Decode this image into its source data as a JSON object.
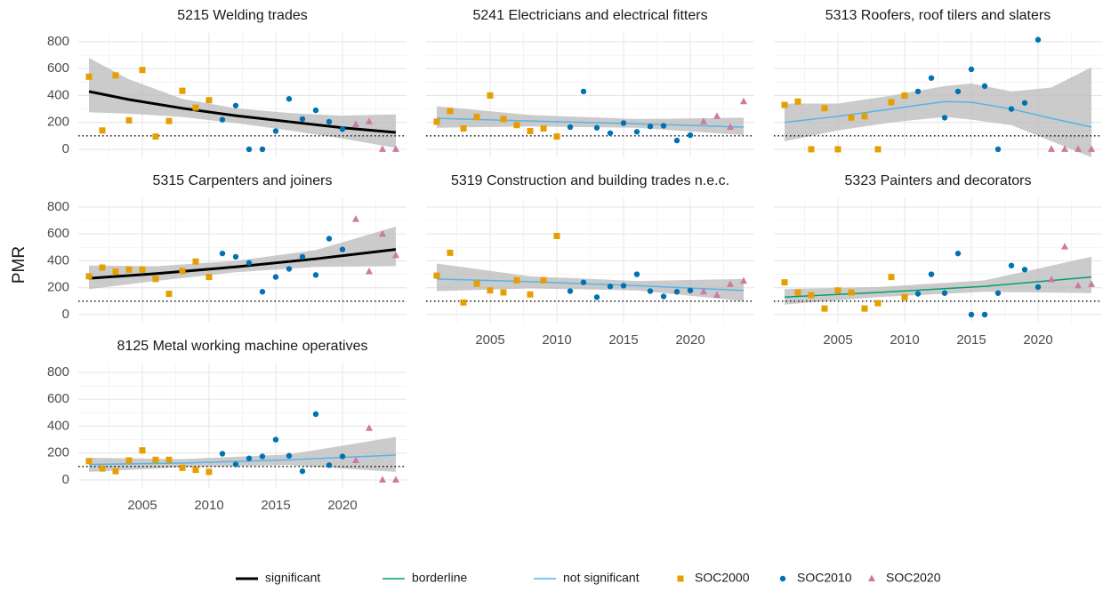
{
  "ylabel": "PMR",
  "legend": [
    {
      "name": "significant",
      "color": "#000000",
      "mark": "line",
      "width": 3
    },
    {
      "name": "borderline",
      "color": "#009E73",
      "mark": "line",
      "width": 1.5
    },
    {
      "name": "not significant",
      "color": "#56B4E9",
      "mark": "line",
      "width": 1.5
    },
    {
      "name": "SOC2000",
      "color": "#E69F00",
      "mark": "square"
    },
    {
      "name": "SOC2010",
      "color": "#0072B2",
      "mark": "circle"
    },
    {
      "name": "SOC2020",
      "color": "#CC79A7",
      "mark": "triangle"
    }
  ],
  "chart_data": [
    {
      "type": "scatter",
      "title": "5215 Welding trades",
      "xlim": [
        2000.2,
        2024.8
      ],
      "ylim": [
        -60,
        866
      ],
      "xticks": [
        2005,
        2010,
        2015,
        2020
      ],
      "yticks": [
        0,
        200,
        400,
        600,
        800
      ],
      "grid": true,
      "reference_line": 100,
      "series": [
        {
          "color": "#E69F00",
          "marker": "square",
          "x": [
            2001,
            2002,
            2003,
            2004,
            2005,
            2006,
            2007,
            2008,
            2009,
            2010
          ],
          "values": [
            540,
            140,
            550,
            215,
            590,
            95,
            210,
            435,
            310,
            365
          ]
        },
        {
          "color": "#0072B2",
          "marker": "circle",
          "x": [
            2011,
            2012,
            2013,
            2014,
            2015,
            2016,
            2017,
            2018,
            2019,
            2020
          ],
          "values": [
            220,
            325,
            0,
            0,
            135,
            375,
            225,
            290,
            205,
            150
          ]
        },
        {
          "color": "#CC79A7",
          "marker": "triangle",
          "x": [
            2021,
            2022,
            2023,
            2024
          ],
          "values": [
            185,
            205,
            0,
            0
          ]
        }
      ],
      "trend": {
        "color": "#000000",
        "width": 3,
        "x": [
          2001,
          2004,
          2008,
          2012,
          2016,
          2020,
          2024
        ],
        "values": [
          430,
          370,
          305,
          250,
          205,
          160,
          125
        ],
        "lower": [
          275,
          265,
          240,
          195,
          140,
          80,
          10
        ],
        "upper": [
          680,
          520,
          375,
          305,
          270,
          250,
          260
        ]
      }
    },
    {
      "type": "scatter",
      "title": "5241 Electricians and electrical fitters",
      "xlim": [
        2000.2,
        2024.8
      ],
      "ylim": [
        -60,
        866
      ],
      "xticks": [
        2005,
        2010,
        2015,
        2020
      ],
      "yticks": [
        0,
        200,
        400,
        600,
        800
      ],
      "grid": true,
      "reference_line": 100,
      "series": [
        {
          "color": "#E69F00",
          "marker": "square",
          "x": [
            2001,
            2002,
            2003,
            2004,
            2005,
            2006,
            2007,
            2008,
            2009,
            2010
          ],
          "values": [
            205,
            285,
            155,
            240,
            400,
            225,
            180,
            135,
            155,
            95
          ]
        },
        {
          "color": "#0072B2",
          "marker": "circle",
          "x": [
            2011,
            2012,
            2013,
            2014,
            2015,
            2016,
            2017,
            2018,
            2019,
            2020
          ],
          "values": [
            165,
            430,
            160,
            120,
            195,
            130,
            170,
            175,
            65,
            105
          ]
        },
        {
          "color": "#CC79A7",
          "marker": "triangle",
          "x": [
            2021,
            2022,
            2023,
            2024
          ],
          "values": [
            205,
            245,
            165,
            355
          ]
        }
      ],
      "trend": {
        "color": "#56B4E9",
        "width": 1.5,
        "x": [
          2001,
          2008,
          2016,
          2024
        ],
        "values": [
          230,
          210,
          190,
          165
        ],
        "lower": [
          160,
          170,
          160,
          105
        ],
        "upper": [
          320,
          255,
          225,
          235
        ]
      }
    },
    {
      "type": "scatter",
      "title": "5313 Roofers, roof tilers and slaters",
      "xlim": [
        2000.2,
        2024.8
      ],
      "ylim": [
        -60,
        866
      ],
      "xticks": [
        2005,
        2010,
        2015,
        2020
      ],
      "yticks": [
        0,
        200,
        400,
        600,
        800
      ],
      "grid": true,
      "reference_line": 100,
      "series": [
        {
          "color": "#E69F00",
          "marker": "square",
          "x": [
            2001,
            2002,
            2003,
            2004,
            2005,
            2006,
            2007,
            2008,
            2009,
            2010
          ],
          "values": [
            330,
            355,
            0,
            305,
            0,
            235,
            245,
            0,
            350,
            400
          ]
        },
        {
          "color": "#0072B2",
          "marker": "circle",
          "x": [
            2011,
            2012,
            2013,
            2014,
            2015,
            2016,
            2017,
            2018,
            2019,
            2020
          ],
          "values": [
            430,
            530,
            235,
            430,
            595,
            470,
            0,
            300,
            345,
            815
          ]
        },
        {
          "color": "#CC79A7",
          "marker": "triangle",
          "x": [
            2021,
            2022,
            2023,
            2024
          ],
          "values": [
            0,
            0,
            0,
            0
          ]
        }
      ],
      "trend": {
        "color": "#56B4E9",
        "width": 1.5,
        "x": [
          2001,
          2005,
          2009,
          2013,
          2015,
          2018,
          2021,
          2024
        ],
        "values": [
          200,
          245,
          300,
          355,
          350,
          300,
          230,
          165
        ],
        "lower": [
          60,
          140,
          200,
          240,
          220,
          180,
          60,
          -60
        ],
        "upper": [
          340,
          340,
          400,
          470,
          490,
          430,
          460,
          610
        ]
      }
    },
    {
      "type": "scatter",
      "title": "5315 Carpenters and joiners",
      "xlim": [
        2000.2,
        2024.8
      ],
      "ylim": [
        -60,
        866
      ],
      "xticks": [
        2005,
        2010,
        2015,
        2020
      ],
      "yticks": [
        0,
        200,
        400,
        600,
        800
      ],
      "grid": true,
      "reference_line": 100,
      "series": [
        {
          "color": "#E69F00",
          "marker": "square",
          "x": [
            2001,
            2002,
            2003,
            2004,
            2005,
            2006,
            2007,
            2008,
            2009,
            2010
          ],
          "values": [
            285,
            350,
            320,
            335,
            335,
            265,
            155,
            325,
            395,
            280
          ]
        },
        {
          "color": "#0072B2",
          "marker": "circle",
          "x": [
            2011,
            2012,
            2013,
            2014,
            2015,
            2016,
            2017,
            2018,
            2019,
            2020
          ],
          "values": [
            455,
            430,
            385,
            170,
            280,
            340,
            430,
            295,
            565,
            485
          ]
        },
        {
          "color": "#CC79A7",
          "marker": "triangle",
          "x": [
            2021,
            2022,
            2023,
            2024
          ],
          "values": [
            710,
            320,
            600,
            440
          ]
        }
      ],
      "trend": {
        "color": "#000000",
        "width": 3,
        "x": [
          2001,
          2006,
          2012,
          2018,
          2024
        ],
        "values": [
          270,
          305,
          355,
          415,
          485
        ],
        "lower": [
          190,
          250,
          315,
          355,
          360
        ],
        "upper": [
          365,
          360,
          400,
          480,
          655
        ]
      }
    },
    {
      "type": "scatter",
      "title": "5319 Construction and building trades n.e.c.",
      "xlim": [
        2000.2,
        2024.8
      ],
      "ylim": [
        -60,
        866
      ],
      "xticks": [
        2005,
        2010,
        2015,
        2020
      ],
      "yticks": [
        0,
        200,
        400,
        600,
        800
      ],
      "grid": true,
      "reference_line": 100,
      "series": [
        {
          "color": "#E69F00",
          "marker": "square",
          "x": [
            2001,
            2002,
            2003,
            2004,
            2005,
            2006,
            2007,
            2008,
            2009,
            2010
          ],
          "values": [
            290,
            460,
            90,
            230,
            180,
            165,
            255,
            150,
            255,
            585
          ]
        },
        {
          "color": "#0072B2",
          "marker": "circle",
          "x": [
            2011,
            2012,
            2013,
            2014,
            2015,
            2016,
            2017,
            2018,
            2019,
            2020
          ],
          "values": [
            175,
            240,
            130,
            210,
            215,
            300,
            175,
            135,
            170,
            180
          ]
        },
        {
          "color": "#CC79A7",
          "marker": "triangle",
          "x": [
            2021,
            2022,
            2023,
            2024
          ],
          "values": [
            170,
            145,
            225,
            250
          ]
        }
      ],
      "trend": {
        "color": "#56B4E9",
        "width": 1.5,
        "x": [
          2001,
          2008,
          2016,
          2024
        ],
        "values": [
          265,
          245,
          215,
          180
        ],
        "lower": [
          175,
          195,
          180,
          100
        ],
        "upper": [
          380,
          285,
          250,
          265
        ]
      }
    },
    {
      "type": "scatter",
      "title": "5323 Painters and decorators",
      "xlim": [
        2000.2,
        2024.8
      ],
      "ylim": [
        -60,
        866
      ],
      "xticks": [
        2005,
        2010,
        2015,
        2020
      ],
      "yticks": [
        0,
        200,
        400,
        600,
        800
      ],
      "grid": true,
      "reference_line": 100,
      "series": [
        {
          "color": "#E69F00",
          "marker": "square",
          "x": [
            2001,
            2002,
            2003,
            2004,
            2005,
            2006,
            2007,
            2008,
            2009,
            2010
          ],
          "values": [
            240,
            165,
            145,
            45,
            180,
            165,
            45,
            85,
            280,
            130
          ]
        },
        {
          "color": "#0072B2",
          "marker": "circle",
          "x": [
            2011,
            2012,
            2013,
            2014,
            2015,
            2016,
            2017,
            2018,
            2019,
            2020
          ],
          "values": [
            155,
            300,
            160,
            455,
            0,
            0,
            160,
            365,
            335,
            205
          ]
        },
        {
          "color": "#CC79A7",
          "marker": "triangle",
          "x": [
            2021,
            2022,
            2023,
            2024
          ],
          "values": [
            260,
            505,
            215,
            225
          ]
        }
      ],
      "trend": {
        "color": "#009E73",
        "width": 1.5,
        "x": [
          2001,
          2008,
          2016,
          2024
        ],
        "values": [
          130,
          165,
          210,
          280
        ],
        "lower": [
          75,
          130,
          170,
          160
        ],
        "upper": [
          190,
          205,
          255,
          430
        ]
      }
    },
    {
      "type": "scatter",
      "title": "8125 Metal working machine operatives",
      "xlim": [
        2000.2,
        2024.8
      ],
      "ylim": [
        -60,
        866
      ],
      "xticks": [
        2005,
        2010,
        2015,
        2020
      ],
      "yticks": [
        0,
        200,
        400,
        600,
        800
      ],
      "grid": true,
      "reference_line": 100,
      "series": [
        {
          "color": "#E69F00",
          "marker": "square",
          "x": [
            2001,
            2002,
            2003,
            2004,
            2005,
            2006,
            2007,
            2008,
            2009,
            2010
          ],
          "values": [
            140,
            85,
            65,
            145,
            220,
            150,
            150,
            90,
            75,
            60
          ]
        },
        {
          "color": "#0072B2",
          "marker": "circle",
          "x": [
            2011,
            2012,
            2013,
            2014,
            2015,
            2016,
            2017,
            2018,
            2019,
            2020
          ],
          "values": [
            195,
            115,
            160,
            175,
            300,
            180,
            65,
            490,
            110,
            175
          ]
        },
        {
          "color": "#CC79A7",
          "marker": "triangle",
          "x": [
            2021,
            2022,
            2023,
            2024
          ],
          "values": [
            145,
            385,
            0,
            0
          ]
        }
      ],
      "trend": {
        "color": "#56B4E9",
        "width": 1.5,
        "x": [
          2001,
          2008,
          2016,
          2024
        ],
        "values": [
          115,
          125,
          150,
          185
        ],
        "lower": [
          60,
          95,
          110,
          60
        ],
        "upper": [
          165,
          155,
          190,
          320
        ]
      }
    }
  ]
}
